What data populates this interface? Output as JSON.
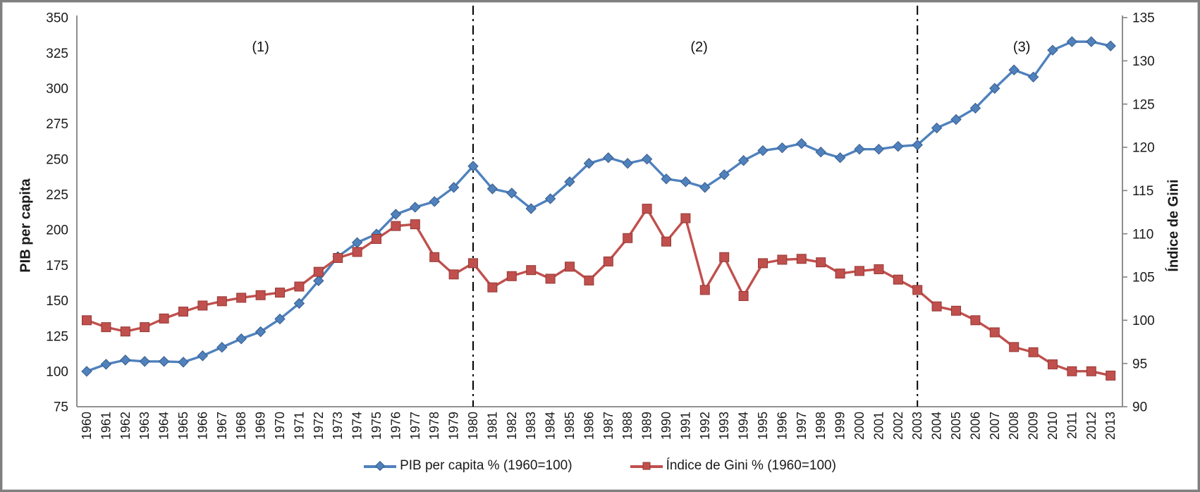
{
  "chart_data": {
    "type": "line",
    "title": "",
    "xlabel": "",
    "ylabel_left": "PIB per capita",
    "ylabel_right": "Índice de Gini",
    "left_axis": {
      "min": 75,
      "max": 350,
      "step": 25
    },
    "right_axis": {
      "min": 90,
      "max": 135,
      "step": 5
    },
    "grid": false,
    "legend_position": "bottom",
    "x": [
      1960,
      1961,
      1962,
      1963,
      1964,
      1965,
      1966,
      1967,
      1968,
      1969,
      1970,
      1971,
      1972,
      1973,
      1974,
      1975,
      1976,
      1977,
      1978,
      1979,
      1980,
      1981,
      1982,
      1983,
      1984,
      1985,
      1986,
      1987,
      1988,
      1989,
      1990,
      1991,
      1992,
      1993,
      1994,
      1995,
      1996,
      1997,
      1998,
      1999,
      2000,
      2001,
      2002,
      2003,
      2004,
      2005,
      2006,
      2007,
      2008,
      2009,
      2010,
      2011,
      2012,
      2013
    ],
    "series": [
      {
        "name": "PIB per capita % (1960=100)",
        "axis": "left",
        "color": "#4F81BD",
        "marker_border": "#385D8A",
        "marker": "diamond",
        "values": [
          100,
          105,
          108,
          107,
          107,
          106.5,
          111,
          117,
          123,
          128,
          137,
          148,
          164,
          181,
          191,
          197,
          211,
          216,
          220,
          230,
          245,
          229,
          226,
          215,
          222,
          234,
          247,
          251,
          247,
          250,
          236,
          234,
          230,
          239,
          249,
          256,
          258,
          261,
          255,
          251,
          257,
          257,
          259,
          260,
          272,
          278,
          286,
          300,
          313,
          308,
          327,
          333,
          333,
          330
        ]
      },
      {
        "name": "Índice de Gini % (1960=100)",
        "axis": "right",
        "color": "#C0504D",
        "marker_border": "#953735",
        "marker": "square",
        "values": [
          100,
          99.2,
          98.7,
          99.2,
          100.2,
          101,
          101.7,
          102.2,
          102.6,
          102.9,
          103.2,
          103.9,
          105.6,
          107.2,
          107.9,
          109.4,
          110.9,
          111.1,
          107.3,
          105.3,
          106.6,
          103.8,
          105.1,
          105.8,
          104.8,
          106.2,
          104.6,
          106.8,
          109.5,
          112.9,
          109.1,
          111.8,
          103.5,
          107.3,
          102.8,
          106.6,
          107,
          107.1,
          106.7,
          105.4,
          105.7,
          105.9,
          104.7,
          103.5,
          101.6,
          101.1,
          100,
          98.6,
          96.9,
          96.3,
          94.9,
          94.1,
          94.1,
          93.6
        ]
      }
    ],
    "annotations": {
      "dividers": [
        {
          "at_year": 1980
        },
        {
          "at_year": 2003
        }
      ],
      "periods": [
        {
          "label": "(1)",
          "at_year": 1969
        },
        {
          "label": "(2)",
          "at_year": 1991.7
        },
        {
          "label": "(3)",
          "at_year": 2008.4
        }
      ]
    }
  }
}
